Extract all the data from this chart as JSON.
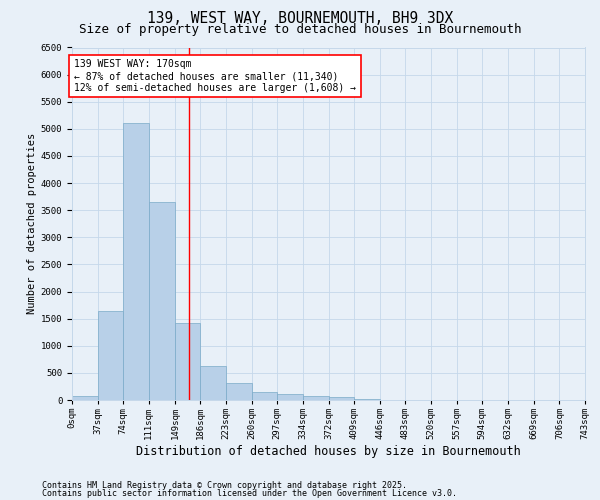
{
  "title": "139, WEST WAY, BOURNEMOUTH, BH9 3DX",
  "subtitle": "Size of property relative to detached houses in Bournemouth",
  "xlabel": "Distribution of detached houses by size in Bournemouth",
  "ylabel": "Number of detached properties",
  "bar_color": "#b8d0e8",
  "bar_edge_color": "#7aaac8",
  "grid_color": "#c5d8ea",
  "background_color": "#e8f0f8",
  "property_line_x": 170,
  "property_line_color": "red",
  "bin_edges": [
    0,
    37,
    74,
    111,
    149,
    186,
    223,
    260,
    297,
    334,
    372,
    409,
    446,
    483,
    520,
    557,
    594,
    632,
    669,
    706,
    743
  ],
  "bar_heights": [
    75,
    1650,
    5100,
    3650,
    1420,
    620,
    310,
    155,
    110,
    75,
    50,
    20,
    0,
    0,
    0,
    0,
    0,
    0,
    0,
    0
  ],
  "annotation_text": "139 WEST WAY: 170sqm\n← 87% of detached houses are smaller (11,340)\n12% of semi-detached houses are larger (1,608) →",
  "annotation_box_color": "white",
  "annotation_box_edge": "red",
  "footnote1": "Contains HM Land Registry data © Crown copyright and database right 2025.",
  "footnote2": "Contains public sector information licensed under the Open Government Licence v3.0.",
  "ylim": [
    0,
    6500
  ],
  "yticks": [
    0,
    500,
    1000,
    1500,
    2000,
    2500,
    3000,
    3500,
    4000,
    4500,
    5000,
    5500,
    6000,
    6500
  ],
  "title_fontsize": 10.5,
  "subtitle_fontsize": 9,
  "xlabel_fontsize": 8.5,
  "ylabel_fontsize": 7.5,
  "tick_fontsize": 6.5,
  "annot_fontsize": 7,
  "footnote_fontsize": 6
}
